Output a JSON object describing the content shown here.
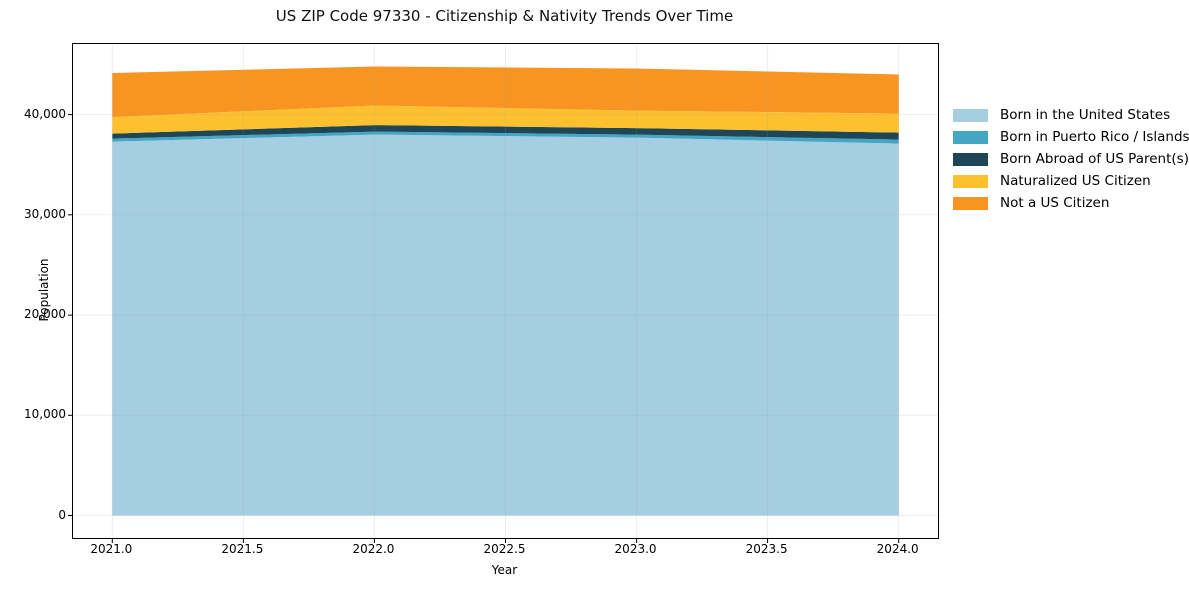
{
  "chart_data": {
    "type": "area",
    "stacked": true,
    "title": "US ZIP Code 97330 - Citizenship & Nativity Trends Over Time",
    "xlabel": "Year",
    "ylabel": "Population",
    "x": [
      2021,
      2022,
      2023,
      2024
    ],
    "series": [
      {
        "name": "Born in the United States",
        "color": "#a6cee3",
        "values": [
          37300,
          38000,
          37700,
          37100
        ]
      },
      {
        "name": "Born in Puerto Rico / Islands",
        "color": "#45a6c3",
        "values": [
          300,
          300,
          300,
          400
        ]
      },
      {
        "name": "Born Abroad of US Parent(s)",
        "color": "#1f4656",
        "values": [
          500,
          650,
          650,
          700
        ]
      },
      {
        "name": "Naturalized US Citizen",
        "color": "#fdc12f",
        "values": [
          1650,
          1950,
          1750,
          1900
        ]
      },
      {
        "name": "Not a US Citizen",
        "color": "#f89522",
        "values": [
          4400,
          3900,
          4200,
          3900
        ]
      }
    ],
    "xlim": [
      2020.85,
      2024.15
    ],
    "ylim": [
      -2240,
      47040
    ],
    "xticks": [
      2021.0,
      2021.5,
      2022.0,
      2022.5,
      2023.0,
      2023.5,
      2024.0
    ],
    "xtick_labels": [
      "2021.0",
      "2021.5",
      "2022.0",
      "2022.5",
      "2023.0",
      "2023.5",
      "2024.0"
    ],
    "yticks": [
      0,
      10000,
      20000,
      30000,
      40000
    ],
    "ytick_labels": [
      "0",
      "10,000",
      "20,000",
      "30,000",
      "40,000"
    ],
    "grid": true,
    "grid_color": "#999999",
    "grid_opacity": 0.18,
    "spine_color": "#000000",
    "legend_position": "outside-right"
  }
}
